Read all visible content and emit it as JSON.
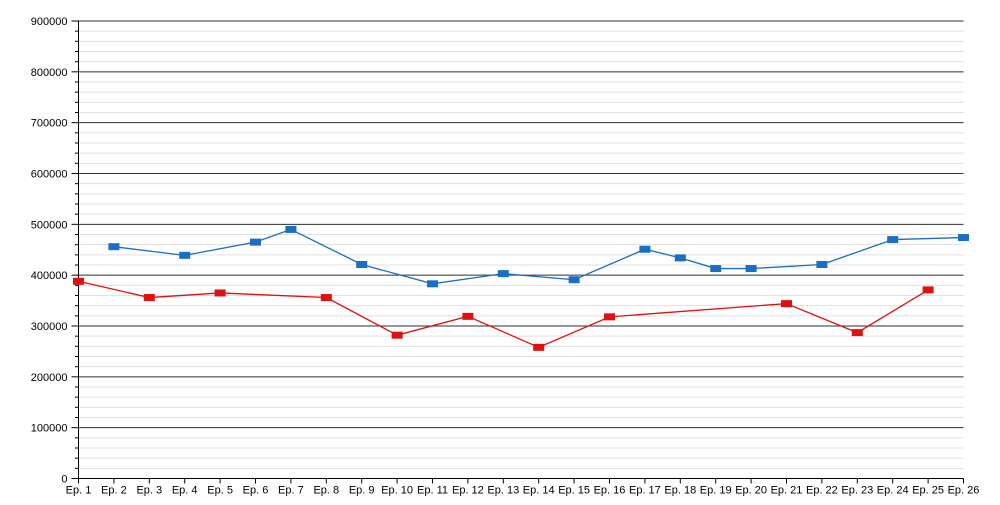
{
  "chart_data": {
    "type": "line",
    "title": "",
    "xlabel": "",
    "ylabel": "",
    "legend": "none",
    "grid": "horizontal",
    "ylim": [
      0,
      900000
    ],
    "y_major_step": 100000,
    "y_minor_step": 20000,
    "y_tick_labels": [
      "0",
      "100000",
      "200000",
      "300000",
      "400000",
      "500000",
      "600000",
      "700000",
      "800000",
      "900000"
    ],
    "x_categories": [
      "Ep. 1",
      "Ep. 2",
      "Ep. 3",
      "Ep. 4",
      "Ep. 5",
      "Ep. 6",
      "Ep. 7",
      "Ep. 8",
      "Ep. 9",
      "Ep. 10",
      "Ep. 11",
      "Ep. 12",
      "Ep. 13",
      "Ep. 14",
      "Ep. 15",
      "Ep. 16",
      "Ep. 17",
      "Ep. 18",
      "Ep. 19",
      "Ep. 20",
      "Ep. 21",
      "Ep. 22",
      "Ep. 23",
      "Ep. 24",
      "Ep. 25",
      "Ep. 26"
    ],
    "series": [
      {
        "name": "blue-series",
        "color": "#1a6ec4",
        "marker": "square",
        "points": [
          {
            "episode": 2,
            "value": 456000
          },
          {
            "episode": 4,
            "value": 439000
          },
          {
            "episode": 6,
            "value": 465000
          },
          {
            "episode": 7,
            "value": 490000
          },
          {
            "episode": 9,
            "value": 421000
          },
          {
            "episode": 11,
            "value": 383000
          },
          {
            "episode": 13,
            "value": 403000
          },
          {
            "episode": 15,
            "value": 391000
          },
          {
            "episode": 17,
            "value": 451000
          },
          {
            "episode": 18,
            "value": 434000
          },
          {
            "episode": 19,
            "value": 413000
          },
          {
            "episode": 20,
            "value": 413000
          },
          {
            "episode": 22,
            "value": 421000
          },
          {
            "episode": 24,
            "value": 470000
          },
          {
            "episode": 26,
            "value": 474000
          }
        ]
      },
      {
        "name": "red-series",
        "color": "#df1010",
        "marker": "square",
        "points": [
          {
            "episode": 1,
            "value": 388000
          },
          {
            "episode": 3,
            "value": 356000
          },
          {
            "episode": 5,
            "value": 365000
          },
          {
            "episode": 8,
            "value": 356000
          },
          {
            "episode": 10,
            "value": 282000
          },
          {
            "episode": 12,
            "value": 319000
          },
          {
            "episode": 14,
            "value": 258000
          },
          {
            "episode": 16,
            "value": 318000
          },
          {
            "episode": 21,
            "value": 344000
          },
          {
            "episode": 23,
            "value": 287000
          },
          {
            "episode": 25,
            "value": 371000
          }
        ]
      }
    ],
    "colors": {
      "background": "#ffffff",
      "major_gridline": "#2f2f2f",
      "minor_gridline": "#e0e0e0",
      "axis": "#000000",
      "tick_label": "#000000"
    }
  }
}
